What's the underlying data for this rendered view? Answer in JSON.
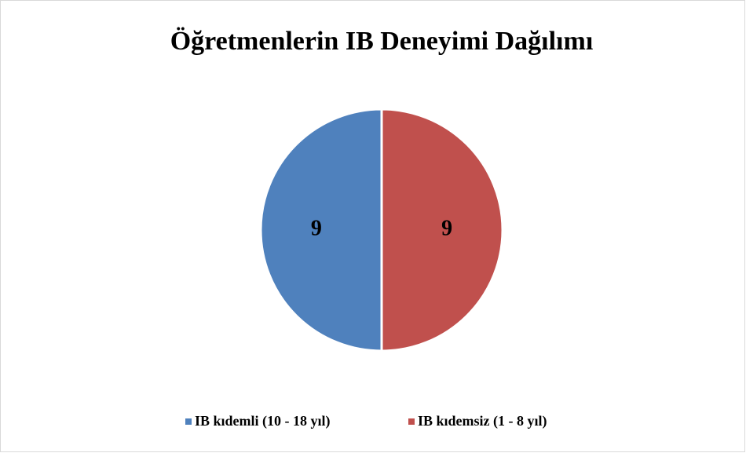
{
  "chart_data": {
    "type": "pie",
    "title": "Öğretmenlerin IB Deneyimi Dağılımı",
    "categories": [
      "IB kıdemli (10 - 18 yıl)",
      "IB kıdemsiz (1 - 8 yıl)"
    ],
    "values": [
      9,
      9
    ],
    "colors": [
      "#4f81bd",
      "#c0504d"
    ],
    "legend": "bottom"
  }
}
